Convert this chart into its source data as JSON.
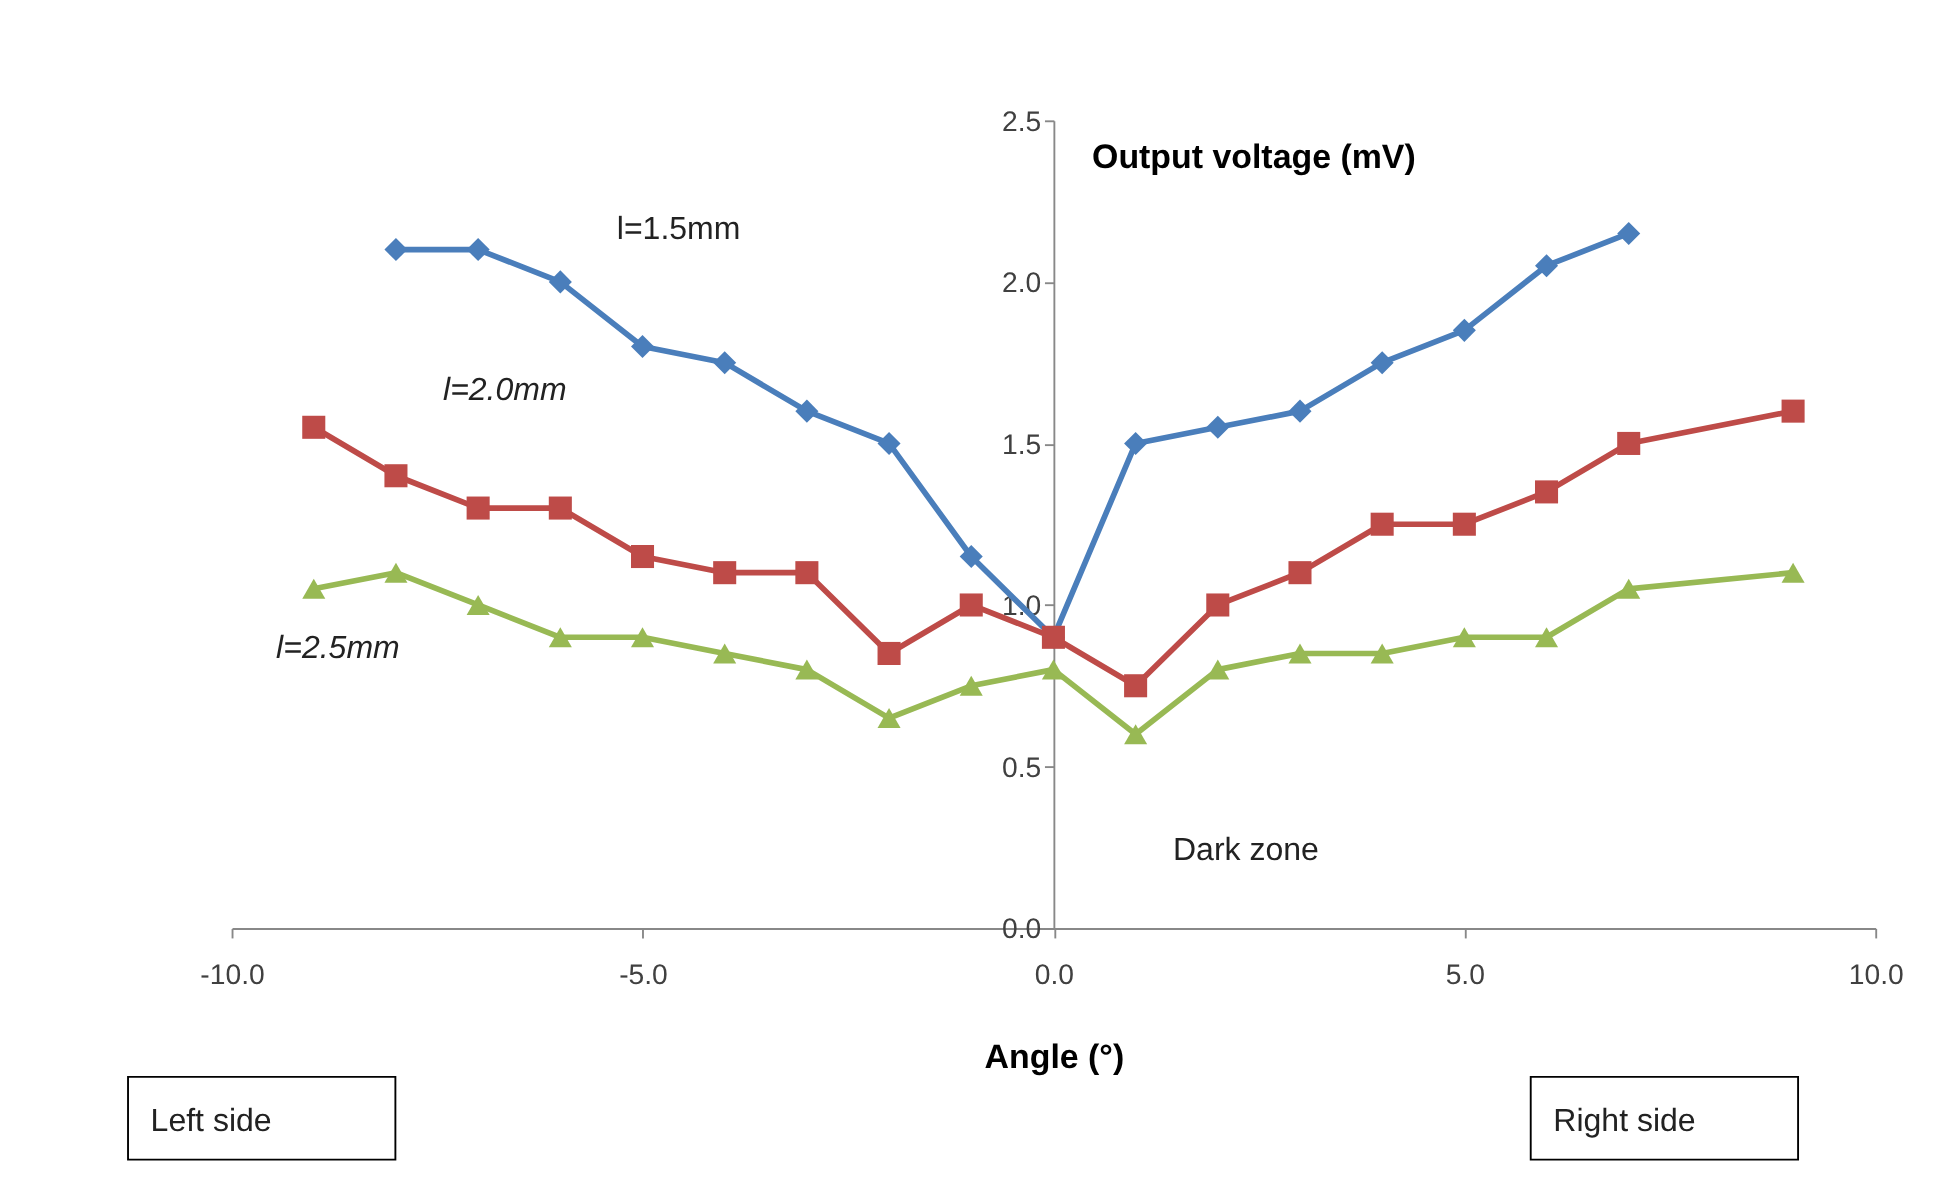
{
  "chart_data": {
    "type": "line",
    "ylabel": "Output voltage (mV)",
    "xlabel": "Angle (°)",
    "xlim": [
      -10,
      10
    ],
    "xticks": [
      {
        "value": -10,
        "label": "-10.0"
      },
      {
        "value": -5,
        "label": "-5.0"
      },
      {
        "value": 0,
        "label": "0.0"
      },
      {
        "value": 5,
        "label": "5.0"
      },
      {
        "value": 10,
        "label": "10.0"
      }
    ],
    "ylim": [
      0,
      2.5
    ],
    "yticks": [
      {
        "value": 0,
        "label": "0.0"
      },
      {
        "value": 0.5,
        "label": "0.5"
      },
      {
        "value": 1,
        "label": "1.0"
      },
      {
        "value": 1.5,
        "label": "1.5"
      },
      {
        "value": 2,
        "label": "2.0"
      },
      {
        "value": 2.5,
        "label": "2.5"
      }
    ],
    "grid": false,
    "legend": false,
    "line_style": "solid",
    "series": [
      {
        "name": "l=1.5mm",
        "color": "#4a7ebb",
        "marker": "diamond",
        "x": [
          -8,
          -7,
          -6,
          -5,
          -4,
          -3,
          -2,
          -1,
          0,
          1,
          2,
          3,
          4,
          5,
          6,
          7
        ],
        "values": [
          2.1,
          2.1,
          2.0,
          1.8,
          1.75,
          1.6,
          1.5,
          1.15,
          0.9,
          1.5,
          1.55,
          1.6,
          1.75,
          1.85,
          2.05,
          2.15
        ]
      },
      {
        "name": "l=2.0mm",
        "color": "#be4b48",
        "marker": "square",
        "x": [
          -9,
          -8,
          -7,
          -6,
          -5,
          -4,
          -3,
          -2,
          -1,
          0,
          1,
          2,
          3,
          4,
          5,
          6,
          7,
          9
        ],
        "values": [
          1.55,
          1.4,
          1.3,
          1.3,
          1.15,
          1.1,
          1.1,
          0.85,
          1.0,
          0.9,
          0.75,
          1.0,
          1.1,
          1.25,
          1.25,
          1.35,
          1.5,
          1.6
        ]
      },
      {
        "name": "l=2.5mm",
        "color": "#98b954",
        "marker": "triangle",
        "x": [
          -9,
          -8,
          -7,
          -6,
          -5,
          -4,
          -3,
          -2,
          -1,
          0,
          1,
          2,
          3,
          4,
          5,
          6,
          7,
          9
        ],
        "values": [
          1.05,
          1.1,
          1.0,
          0.9,
          0.9,
          0.85,
          0.8,
          0.65,
          0.75,
          0.8,
          0.6,
          0.8,
          0.85,
          0.85,
          0.9,
          0.9,
          1.05,
          1.1
        ]
      }
    ],
    "annotations": [
      "Dark zone",
      "Left side",
      "Right side"
    ]
  }
}
